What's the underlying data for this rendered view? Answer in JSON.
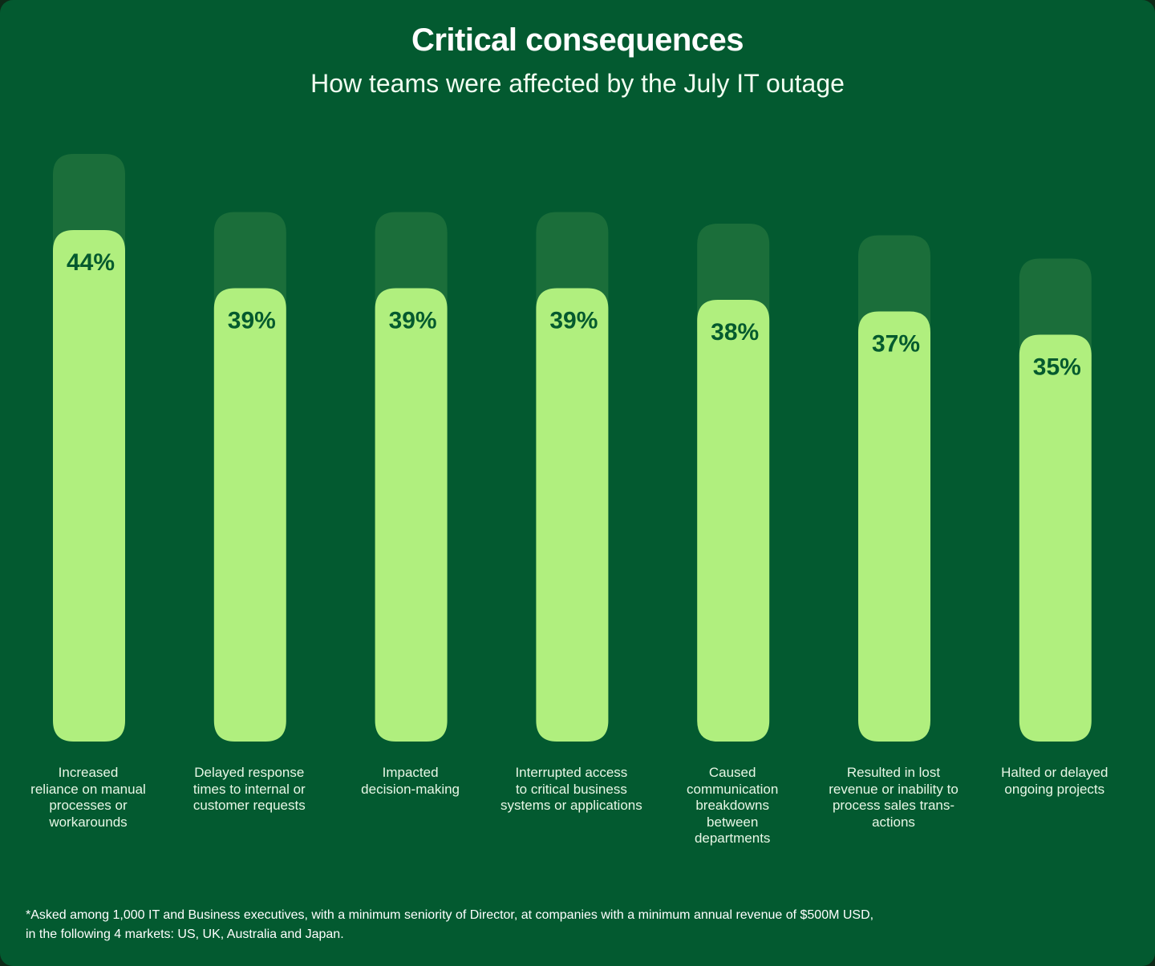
{
  "chart_data": {
    "type": "bar",
    "title": "Critical consequences",
    "subtitle": "How teams were affected by the July IT outage",
    "xlabel": "",
    "ylabel": "",
    "ylim": [
      0,
      50
    ],
    "grid": false,
    "legend": "none",
    "categories": [
      "Increased reliance on manual processes or workarounds",
      "Delayed response times to internal or customer requests",
      "Impacted decision-making",
      "Interrupted access to critical business systems or applications",
      "Caused communication breakdowns between departments",
      "Resulted in lost revenue or inability to process sales transactions",
      "Halted or delayed ongoing projects"
    ],
    "category_label_lines": [
      [
        "Increased",
        "reliance on manual",
        "processes or",
        "workarounds"
      ],
      [
        "Delayed response",
        "times to internal or",
        "customer requests"
      ],
      [
        "Impacted",
        "decision-making"
      ],
      [
        "Interrupted access",
        "to critical business",
        "systems or applications"
      ],
      [
        "Caused",
        "communication",
        "breakdowns",
        "between",
        "departments"
      ],
      [
        "Resulted in lost",
        "revenue or inability to",
        "process sales trans-",
        "actions"
      ],
      [
        "Halted or delayed",
        "ongoing projects"
      ]
    ],
    "values": [
      44,
      39,
      39,
      39,
      38,
      37,
      35
    ],
    "value_labels": [
      "44%",
      "39%",
      "39%",
      "39%",
      "38%",
      "37%",
      "35%"
    ],
    "unit": "%"
  },
  "footnote": {
    "line1": "*Asked among 1,000 IT and Business executives, with a minimum seniority of Director, at companies with a minimum annual revenue of $500M USD,",
    "line2": "in the following 4 markets: US, UK, Australia and Japan."
  },
  "colors": {
    "background": "#035a30",
    "bar_fill": "#b0ef7e",
    "bar_cap": "#1b6e3a",
    "value_text": "#045a2e",
    "text": "#ffffff"
  }
}
